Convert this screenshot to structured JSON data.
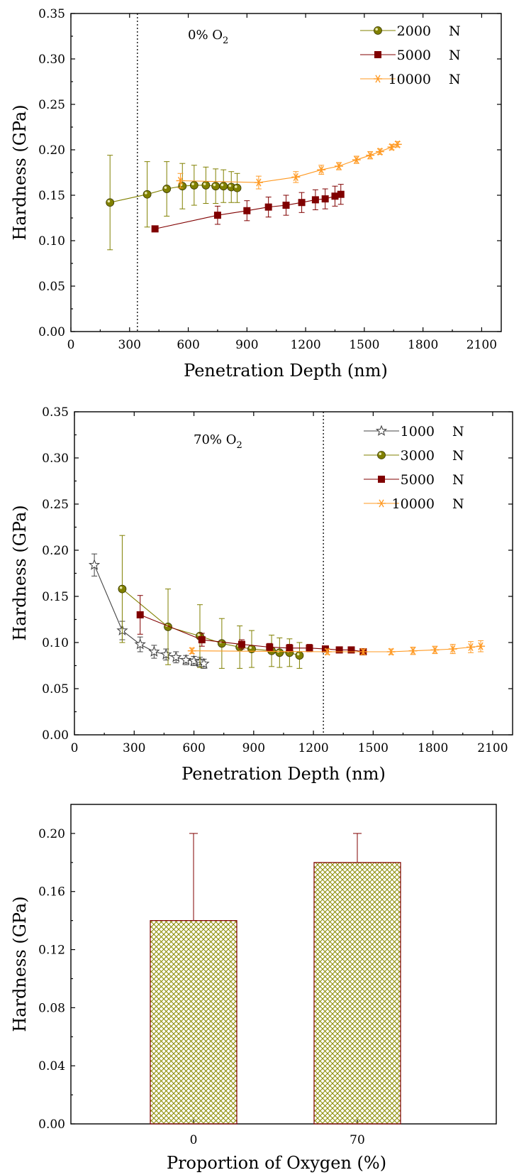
{
  "chart_data": [
    {
      "type": "scatter",
      "title": "",
      "annotation": "0% O",
      "annotation_sub": "2",
      "xlabel": "Penetration Depth (nm)",
      "ylabel": "Hardness (GPa)",
      "xlim": [
        0,
        2200
      ],
      "ylim": [
        0,
        0.35
      ],
      "xticks": [
        "0",
        "300",
        "600",
        "900",
        "1200",
        "1500",
        "1800",
        "2100"
      ],
      "xtick_values": [
        0,
        300,
        600,
        900,
        1200,
        1500,
        1800,
        2100
      ],
      "yticks": [
        "0.00",
        "0.05",
        "0.10",
        "0.15",
        "0.20",
        "0.25",
        "0.30",
        "0.35"
      ],
      "ytick_values": [
        0,
        0.05,
        0.1,
        0.15,
        0.2,
        0.25,
        0.3,
        0.35
      ],
      "vline_x": 340,
      "legend_position": "top-right",
      "series": [
        {
          "name": "2000",
          "unit": "N",
          "marker": "circle",
          "color": "#808000",
          "x": [
            200,
            390,
            490,
            570,
            630,
            690,
            740,
            780,
            820,
            850
          ],
          "y": [
            0.142,
            0.151,
            0.157,
            0.16,
            0.161,
            0.161,
            0.16,
            0.16,
            0.159,
            0.158
          ],
          "err": [
            0.052,
            0.036,
            0.03,
            0.025,
            0.022,
            0.02,
            0.019,
            0.018,
            0.017,
            0.016
          ]
        },
        {
          "name": "5000",
          "unit": "N",
          "marker": "square",
          "color": "#800000",
          "x": [
            430,
            750,
            900,
            1010,
            1100,
            1180,
            1250,
            1300,
            1350,
            1380
          ],
          "y": [
            0.113,
            0.128,
            0.133,
            0.137,
            0.139,
            0.142,
            0.145,
            0.146,
            0.149,
            0.151
          ],
          "err": [
            0,
            0.01,
            0.011,
            0.011,
            0.011,
            0.011,
            0.011,
            0.011,
            0.011,
            0.011
          ]
        },
        {
          "name": "10000",
          "unit": "N",
          "marker": "asterisk",
          "color": "#FF9922",
          "x": [
            560,
            960,
            1150,
            1280,
            1370,
            1460,
            1530,
            1580,
            1640,
            1670
          ],
          "y": [
            0.166,
            0.164,
            0.17,
            0.178,
            0.182,
            0.189,
            0.194,
            0.198,
            0.203,
            0.206
          ],
          "err": [
            0.008,
            0.007,
            0.006,
            0.005,
            0.004,
            0.004,
            0.004,
            0.003,
            0.003,
            0.003
          ]
        }
      ]
    },
    {
      "type": "scatter",
      "title": "",
      "annotation": "70% O",
      "annotation_sub": "2",
      "xlabel": "Penetration Depth (nm)",
      "ylabel": "Hardness (GPa)",
      "xlim": [
        0,
        2200
      ],
      "ylim": [
        0,
        0.35
      ],
      "xticks": [
        "0",
        "300",
        "600",
        "900",
        "1200",
        "1500",
        "1800",
        "2100"
      ],
      "xtick_values": [
        0,
        300,
        600,
        900,
        1200,
        1500,
        1800,
        2100
      ],
      "yticks": [
        "0.00",
        "0.05",
        "0.10",
        "0.15",
        "0.20",
        "0.25",
        "0.30",
        "0.35"
      ],
      "ytick_values": [
        0,
        0.05,
        0.1,
        0.15,
        0.2,
        0.25,
        0.3,
        0.35
      ],
      "vline_x": 1250,
      "legend_position": "top-right",
      "series": [
        {
          "name": "1000",
          "unit": "N",
          "marker": "star",
          "color": "#444444",
          "x": [
            100,
            240,
            330,
            400,
            460,
            510,
            560,
            600,
            630,
            650
          ],
          "y": [
            0.184,
            0.113,
            0.098,
            0.09,
            0.087,
            0.084,
            0.081,
            0.08,
            0.079,
            0.077
          ],
          "err": [
            0.012,
            0.01,
            0.008,
            0.007,
            0.006,
            0.006,
            0.005,
            0.005,
            0.005,
            0.005
          ]
        },
        {
          "name": "3000",
          "unit": "N",
          "marker": "circle",
          "color": "#808000",
          "x": [
            240,
            470,
            630,
            740,
            830,
            890,
            990,
            1030,
            1080,
            1130
          ],
          "y": [
            0.158,
            0.117,
            0.107,
            0.099,
            0.095,
            0.093,
            0.091,
            0.089,
            0.089,
            0.086
          ],
          "err": [
            0.058,
            0.041,
            0.034,
            0.027,
            0.023,
            0.02,
            0.017,
            0.016,
            0.015,
            0.014
          ]
        },
        {
          "name": "5000",
          "unit": "N",
          "marker": "square",
          "color": "#800000",
          "x": [
            330,
            640,
            840,
            980,
            1080,
            1180,
            1260,
            1330,
            1390,
            1450
          ],
          "y": [
            0.13,
            0.103,
            0.098,
            0.095,
            0.094,
            0.094,
            0.093,
            0.092,
            0.092,
            0.09
          ],
          "err": [
            0.021,
            0.007,
            0.005,
            0.004,
            0.004,
            0.004,
            0.003,
            0.003,
            0.003,
            0.003
          ]
        },
        {
          "name": "10000",
          "unit": "N",
          "marker": "asterisk",
          "color": "#FF9922",
          "x": [
            590,
            1270,
            1450,
            1590,
            1700,
            1810,
            1900,
            1990,
            2040
          ],
          "y": [
            0.091,
            0.09,
            0.09,
            0.09,
            0.091,
            0.092,
            0.093,
            0.095,
            0.096
          ],
          "err": [
            0.003,
            0.003,
            0.003,
            0.003,
            0.004,
            0.004,
            0.005,
            0.006,
            0.006
          ]
        }
      ]
    },
    {
      "type": "bar",
      "title": "",
      "xlabel": "Proportion of Oxygen (%)",
      "ylabel": "Hardness (GPa)",
      "categories": [
        "0",
        "70"
      ],
      "values": [
        0.14,
        0.18
      ],
      "err_upper": [
        0.06,
        0.02
      ],
      "ylim": [
        0,
        0.22
      ],
      "yticks": [
        "0.00",
        "0.04",
        "0.08",
        "0.12",
        "0.16",
        "0.20"
      ],
      "ytick_values": [
        0,
        0.04,
        0.08,
        0.12,
        0.16,
        0.2
      ],
      "bar_fill_color": "#8a8a00",
      "bar_edge_color": "#800000"
    }
  ]
}
